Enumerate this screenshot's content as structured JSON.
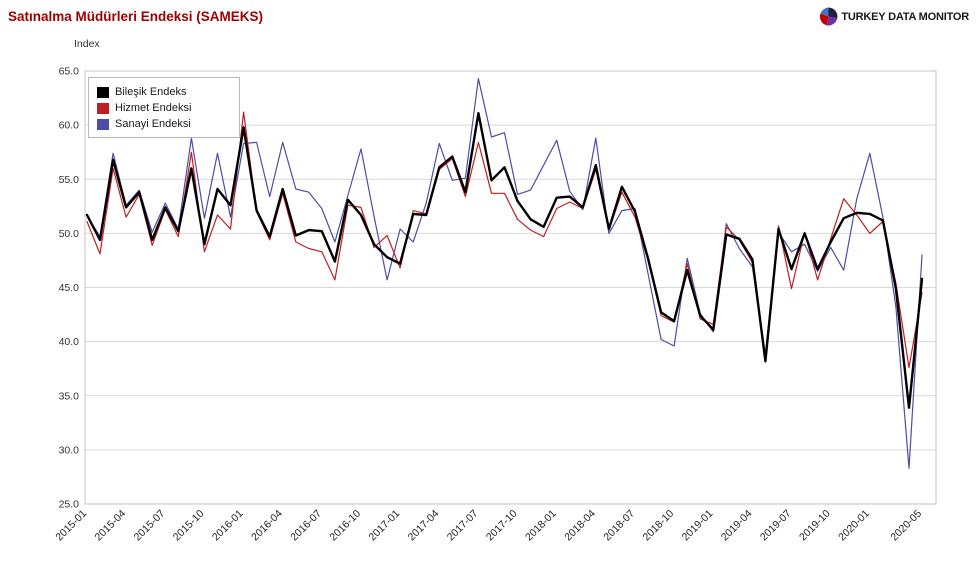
{
  "header": {
    "title": "Satınalma Müdürleri Endeksi (SAMEKS)",
    "brand": {
      "name": "TURKEY DATA MONITOR",
      "pie_icon_colors": [
        "#4472c4",
        "#22223f",
        "#c00000",
        "#7030a0"
      ]
    }
  },
  "colors": {
    "title": "#a00000",
    "grid": "#d9d9d9",
    "frame": "#c6c6c6",
    "tick_text": "#333333"
  },
  "chart_data": {
    "type": "line",
    "title": "Satınalma Müdürleri Endeksi (SAMEKS)",
    "ylabel": "Index",
    "ylim": [
      25.0,
      65.0
    ],
    "y_ticks": [
      "65.0",
      "60.0",
      "55.0",
      "50.0",
      "45.0",
      "40.0",
      "35.0",
      "30.0",
      "25.0"
    ],
    "grid": "horizontal",
    "legend_position": "top-left",
    "x": [
      "2015-01",
      "2015-02",
      "2015-03",
      "2015-04",
      "2015-05",
      "2015-06",
      "2015-07",
      "2015-08",
      "2015-09",
      "2015-10",
      "2015-11",
      "2015-12",
      "2016-01",
      "2016-02",
      "2016-03",
      "2016-04",
      "2016-05",
      "2016-06",
      "2016-07",
      "2016-08",
      "2016-09",
      "2016-10",
      "2016-11",
      "2016-12",
      "2017-01",
      "2017-02",
      "2017-03",
      "2017-04",
      "2017-05",
      "2017-06",
      "2017-07",
      "2017-08",
      "2017-09",
      "2017-10",
      "2017-11",
      "2017-12",
      "2018-01",
      "2018-02",
      "2018-03",
      "2018-04",
      "2018-05",
      "2018-06",
      "2018-07",
      "2018-08",
      "2018-09",
      "2018-10",
      "2018-11",
      "2018-12",
      "2019-01",
      "2019-02",
      "2019-03",
      "2019-04",
      "2019-05",
      "2019-06",
      "2019-07",
      "2019-08",
      "2019-09",
      "2019-10",
      "2019-11",
      "2019-12",
      "2020-01",
      "2020-02",
      "2020-03",
      "2020-04",
      "2020-05"
    ],
    "x_tick_labels": [
      "2015-01",
      "2015-04",
      "2015-07",
      "2015-10",
      "2016-01",
      "2016-04",
      "2016-07",
      "2016-10",
      "2017-01",
      "2017-04",
      "2017-07",
      "2017-10",
      "2018-01",
      "2018-04",
      "2018-07",
      "2018-10",
      "2019-01",
      "2019-04",
      "2019-07",
      "2019-10",
      "2020-01",
      "2020-05"
    ],
    "series": [
      {
        "name": "Bileşik Endeks",
        "color": "#000000",
        "width": 2.4,
        "values": [
          51.7,
          49.4,
          56.8,
          52.4,
          53.8,
          49.4,
          52.4,
          50.2,
          56.0,
          49.0,
          54.1,
          52.6,
          59.8,
          52.1,
          49.7,
          54.1,
          49.8,
          50.3,
          50.2,
          47.4,
          53.1,
          51.7,
          49.0,
          47.8,
          47.2,
          51.8,
          51.7,
          56.1,
          57.1,
          53.8,
          61.1,
          54.9,
          56.1,
          53.0,
          51.3,
          50.6,
          53.3,
          53.4,
          52.4,
          56.3,
          50.4,
          54.3,
          52.0,
          47.7,
          42.7,
          41.9,
          46.6,
          42.4,
          41.1,
          49.9,
          49.5,
          47.6,
          38.2,
          50.4,
          46.7,
          50.0,
          46.7,
          49.2,
          51.4,
          51.9,
          51.8,
          51.2,
          44.9,
          33.9,
          45.8
        ]
      },
      {
        "name": "Hizmet Endeksi",
        "color": "#bf1f24",
        "width": 1.2,
        "values": [
          51.1,
          48.1,
          56.0,
          51.5,
          53.6,
          48.9,
          52.2,
          49.7,
          57.5,
          48.3,
          51.7,
          50.4,
          61.2,
          52.0,
          49.4,
          53.7,
          49.2,
          48.6,
          48.3,
          45.7,
          52.6,
          52.4,
          48.7,
          49.8,
          46.8,
          52.1,
          51.8,
          55.9,
          56.9,
          53.4,
          58.4,
          53.7,
          53.7,
          51.3,
          50.3,
          49.7,
          52.3,
          52.9,
          52.3,
          55.9,
          50.3,
          53.8,
          51.5,
          47.5,
          42.4,
          41.8,
          47.2,
          42.1,
          41.6,
          50.6,
          49.4,
          47.3,
          38.1,
          50.7,
          44.9,
          50.1,
          45.7,
          49.5,
          53.2,
          51.7,
          50.0,
          51.1,
          45.4,
          37.6,
          44.5
        ]
      },
      {
        "name": "Sanayi Endeksi",
        "color": "#4d4da8",
        "width": 1.2,
        "values": [
          51.6,
          49.7,
          57.4,
          52.6,
          54.0,
          50.1,
          52.8,
          50.4,
          58.8,
          51.4,
          57.4,
          51.5,
          58.3,
          58.4,
          53.4,
          58.4,
          54.1,
          53.8,
          52.3,
          49.2,
          53.5,
          57.8,
          51.6,
          45.7,
          50.4,
          49.2,
          52.8,
          58.3,
          54.9,
          55.1,
          64.3,
          58.9,
          59.3,
          53.6,
          54.0,
          56.3,
          58.6,
          53.9,
          52.2,
          58.8,
          50.0,
          52.1,
          52.3,
          46.3,
          40.2,
          39.6,
          47.7,
          42.6,
          40.9,
          50.9,
          48.6,
          46.9,
          38.8,
          50.1,
          48.3,
          49.0,
          46.5,
          48.7,
          46.6,
          53.2,
          57.4,
          51.5,
          43.2,
          28.3,
          48.0
        ]
      }
    ]
  }
}
